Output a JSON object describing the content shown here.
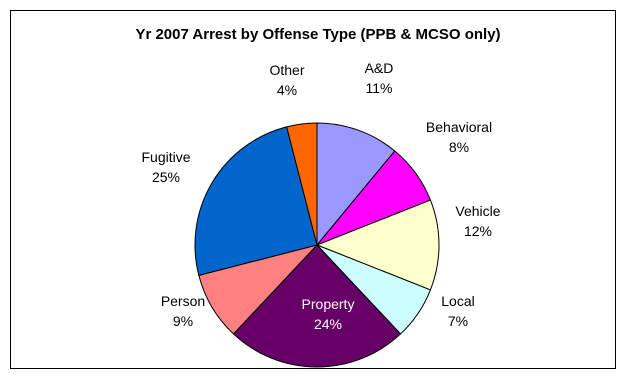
{
  "chart_data": {
    "type": "pie",
    "title": "Yr 2007 Arrest by Offense Type (PPB & MCSO only)",
    "slices": [
      {
        "name": "A&D",
        "value": 11,
        "label": "11%",
        "color": "#9999FF"
      },
      {
        "name": "Behavioral",
        "value": 8,
        "label": "8%",
        "color": "#FF00FF"
      },
      {
        "name": "Vehicle",
        "value": 12,
        "label": "12%",
        "color": "#FFFFCC"
      },
      {
        "name": "Local",
        "value": 7,
        "label": "7%",
        "color": "#CCFFFF"
      },
      {
        "name": "Property",
        "value": 24,
        "label": "24%",
        "color": "#660066"
      },
      {
        "name": "Person",
        "value": 9,
        "label": "9%",
        "color": "#FF8080"
      },
      {
        "name": "Fugitive",
        "value": 25,
        "label": "25%",
        "color": "#0066CC"
      },
      {
        "name": "Other",
        "value": 4,
        "label": "4%",
        "color": "#FF6600"
      }
    ],
    "start_angle_deg": 0,
    "direction": "clockwise"
  }
}
